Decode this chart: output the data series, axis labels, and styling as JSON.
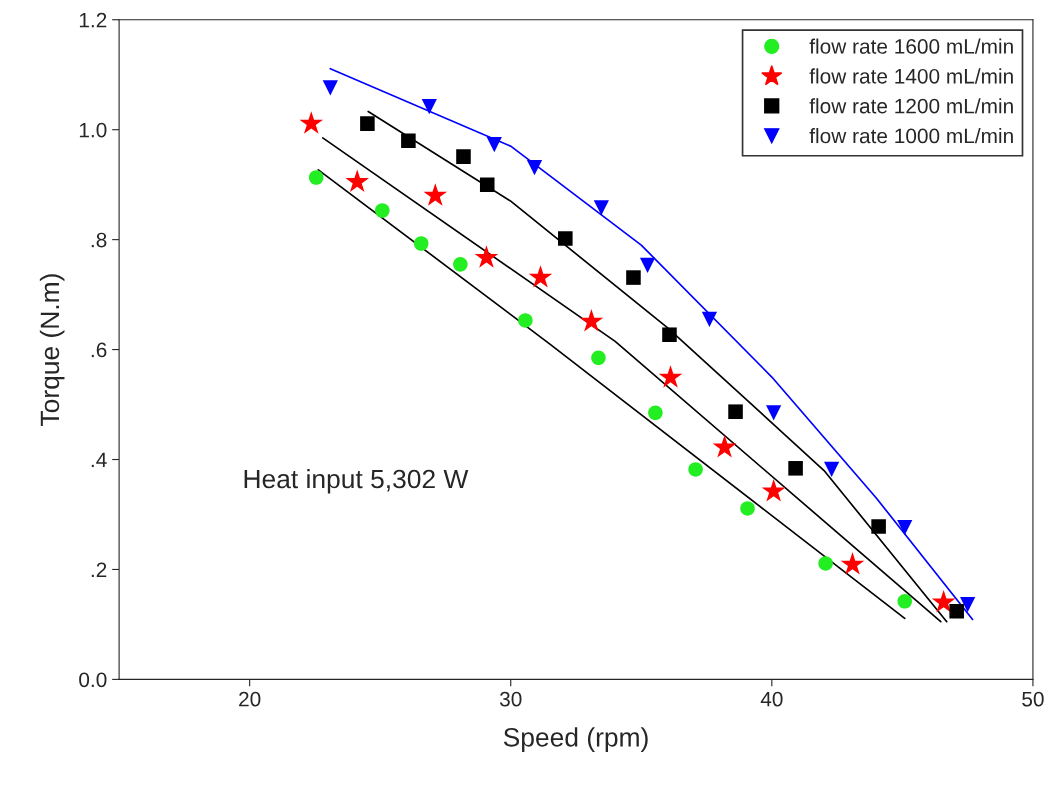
{
  "chart_data": {
    "type": "scatter",
    "xlabel": "Speed (rpm)",
    "ylabel": "Torque (N.m)",
    "xlim": [
      15,
      50
    ],
    "xticks": [
      20,
      30,
      40,
      50
    ],
    "ylim": [
      0,
      1.2
    ],
    "yticks": [
      {
        "value": 0,
        "label": "0.0"
      },
      {
        "value": 0.2,
        "label": ".2"
      },
      {
        "value": 0.4,
        "label": ".4"
      },
      {
        "value": 0.6,
        "label": ".6"
      },
      {
        "value": 0.8,
        "label": ".8"
      },
      {
        "value": 1.0,
        "label": "1.0"
      },
      {
        "value": 1.2,
        "label": "1.2"
      }
    ],
    "grid": false,
    "legend": "top right",
    "annotations": [
      "Heat input 5,302 W"
    ],
    "series": [
      {
        "name": "flow rate 1600 mL/min",
        "marker": "circle",
        "color": "#22ee22",
        "x": [
          22.55,
          25.08,
          26.57,
          28.07,
          30.56,
          33.36,
          35.54,
          37.08,
          39.07,
          42.06,
          45.09
        ],
        "values": [
          0.913,
          0.853,
          0.793,
          0.755,
          0.653,
          0.585,
          0.485,
          0.382,
          0.311,
          0.211,
          0.142
        ]
      },
      {
        "name": "flow rate 1400 mL/min",
        "marker": "star",
        "color": "#ff0000",
        "x": [
          22.36,
          24.12,
          27.11,
          29.07,
          31.14,
          33.09,
          36.12,
          38.19,
          40.07,
          43.09,
          46.58
        ],
        "values": [
          1.011,
          0.905,
          0.88,
          0.767,
          0.731,
          0.651,
          0.549,
          0.422,
          0.342,
          0.209,
          0.14
        ]
      },
      {
        "name": "flow rate 1200 mL/min",
        "marker": "square",
        "color": "#000000",
        "x": [
          24.51,
          26.08,
          28.19,
          29.1,
          32.09,
          34.7,
          36.08,
          38.61,
          40.91,
          44.09,
          47.08
        ],
        "values": [
          1.011,
          0.98,
          0.951,
          0.9,
          0.802,
          0.731,
          0.627,
          0.487,
          0.384,
          0.278,
          0.124
        ]
      },
      {
        "name": "flow rate 1000 mL/min",
        "marker": "triangle",
        "color": "#0000ff",
        "x": [
          23.09,
          26.88,
          29.37,
          30.91,
          33.47,
          35.24,
          37.61,
          40.07,
          42.29,
          45.09,
          47.5
        ],
        "values": [
          1.076,
          1.042,
          0.973,
          0.931,
          0.858,
          0.753,
          0.655,
          0.485,
          0.382,
          0.276,
          0.136
        ]
      },
      {
        "type": "line",
        "color": "#000000",
        "x": [
          22.63,
          31.5,
          45.09
        ],
        "values": [
          0.927,
          0.61,
          0.111
        ]
      },
      {
        "type": "line",
        "color": "#000000",
        "x": [
          22.8,
          34,
          46.47
        ],
        "values": [
          0.985,
          0.615,
          0.105
        ]
      },
      {
        "type": "line",
        "color": "#000000",
        "x": [
          24.54,
          30,
          36,
          42,
          46.7
        ],
        "values": [
          1.033,
          0.87,
          0.64,
          0.38,
          0.105
        ]
      },
      {
        "type": "line",
        "color": "#0000ff",
        "x": [
          23.09,
          30,
          35,
          40,
          44,
          47.69
        ],
        "values": [
          1.111,
          0.97,
          0.79,
          0.55,
          0.33,
          0.109
        ]
      }
    ]
  }
}
